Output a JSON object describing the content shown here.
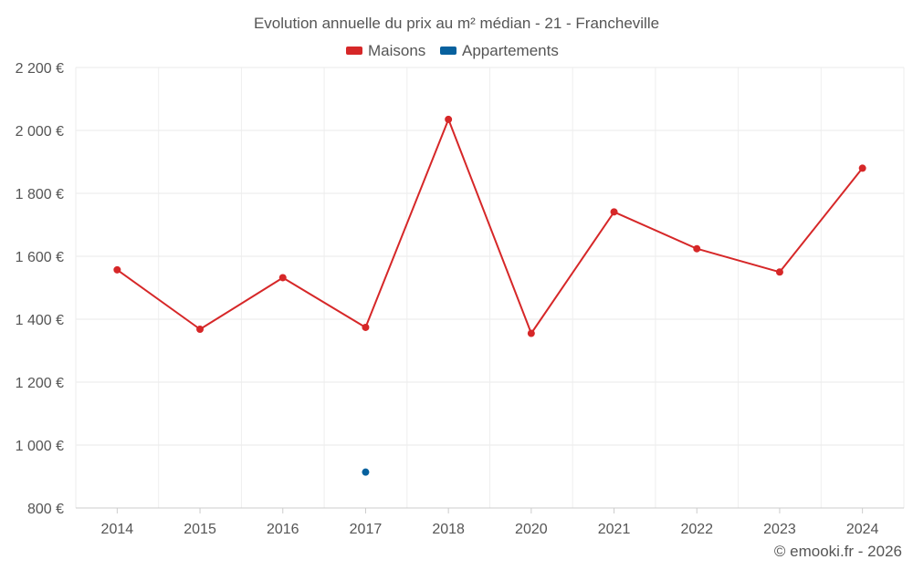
{
  "chart_data": {
    "type": "line",
    "title": "Evolution annuelle du prix au m² médian - 21 - Francheville",
    "categories": [
      "2014",
      "2015",
      "2016",
      "2017",
      "2018",
      "2020",
      "2021",
      "2022",
      "2023",
      "2024"
    ],
    "series": [
      {
        "name": "Maisons",
        "color": "#d62728",
        "values": [
          1557,
          1368,
          1532,
          1374,
          2035,
          1355,
          1741,
          1624,
          1550,
          1880
        ]
      },
      {
        "name": "Appartements",
        "color": "#07619e",
        "values": [
          null,
          null,
          null,
          914,
          null,
          null,
          null,
          null,
          null,
          null
        ]
      }
    ],
    "ylim": [
      800,
      2200
    ],
    "yticks": [
      800,
      1000,
      1200,
      1400,
      1600,
      1800,
      2000,
      2200
    ],
    "ytick_labels": [
      "800 €",
      "1 000 €",
      "1 200 €",
      "1 400 €",
      "1 600 €",
      "1 800 €",
      "2 000 €",
      "2 200 €"
    ],
    "xlabel": "",
    "ylabel": "",
    "grid": true,
    "legend_position": "top-center"
  },
  "credit": "© emooki.fr - 2026"
}
